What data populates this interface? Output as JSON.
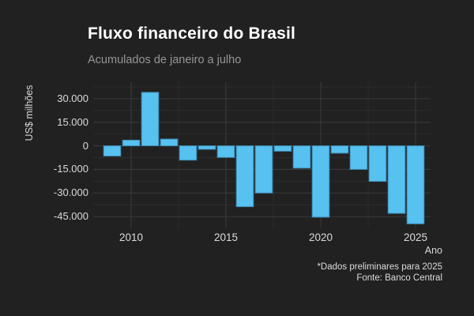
{
  "header": {
    "title": "Fluxo financeiro do Brasil",
    "subtitle": "Acumulados de janeiro a julho"
  },
  "footer": {
    "note": "*Dados preliminares para 2025",
    "source": "Fonte: Banco Central"
  },
  "chart_data": {
    "type": "bar",
    "title": "Fluxo financeiro do Brasil",
    "subtitle": "Acumulados de janeiro a julho",
    "xlabel": "Ano",
    "ylabel": "US$ milhões",
    "caption": [
      "*Dados preliminares para 2025",
      "Fonte: Banco Central"
    ],
    "categories": [
      2009,
      2010,
      2011,
      2012,
      2013,
      2014,
      2015,
      2016,
      2017,
      2018,
      2019,
      2020,
      2021,
      2022,
      2023,
      2024,
      2025
    ],
    "values": [
      -6500,
      3600,
      34000,
      4300,
      -9100,
      -2200,
      -7400,
      -38700,
      -30000,
      -3400,
      -14200,
      -45400,
      -4700,
      -15000,
      -22600,
      -43000,
      -49600
    ],
    "unit": "US$ milhões",
    "bar_color": "#57c1f0",
    "bar_edge_color": "#3d8cb4",
    "grid_major_color": "#3b3b3b",
    "grid_minor_color": "#2c2c2c",
    "background_color": "#212121",
    "legend": "none",
    "grid": "major+minor",
    "ylim": [
      -52500,
      40500
    ],
    "xlim": [
      2008,
      2025.79
    ],
    "bar_width_years": 0.9,
    "y_ticks": [
      {
        "value": 30000,
        "label": "30.000"
      },
      {
        "value": 15000,
        "label": "15.000"
      },
      {
        "value": 0,
        "label": "0"
      },
      {
        "value": -15000,
        "label": "-15.000"
      },
      {
        "value": -30000,
        "label": "-30.000"
      },
      {
        "value": -45000,
        "label": "-45.000"
      }
    ],
    "y_minor": [
      37500,
      22500,
      7500,
      -7500,
      -22500,
      -37500,
      -52500
    ],
    "x_ticks": [
      {
        "value": 2010,
        "label": "2010"
      },
      {
        "value": 2015,
        "label": "2015"
      },
      {
        "value": 2020,
        "label": "2020"
      },
      {
        "value": 2025,
        "label": "2025"
      }
    ],
    "x_minor": [
      2012.5,
      2017.5,
      2022.5
    ]
  }
}
